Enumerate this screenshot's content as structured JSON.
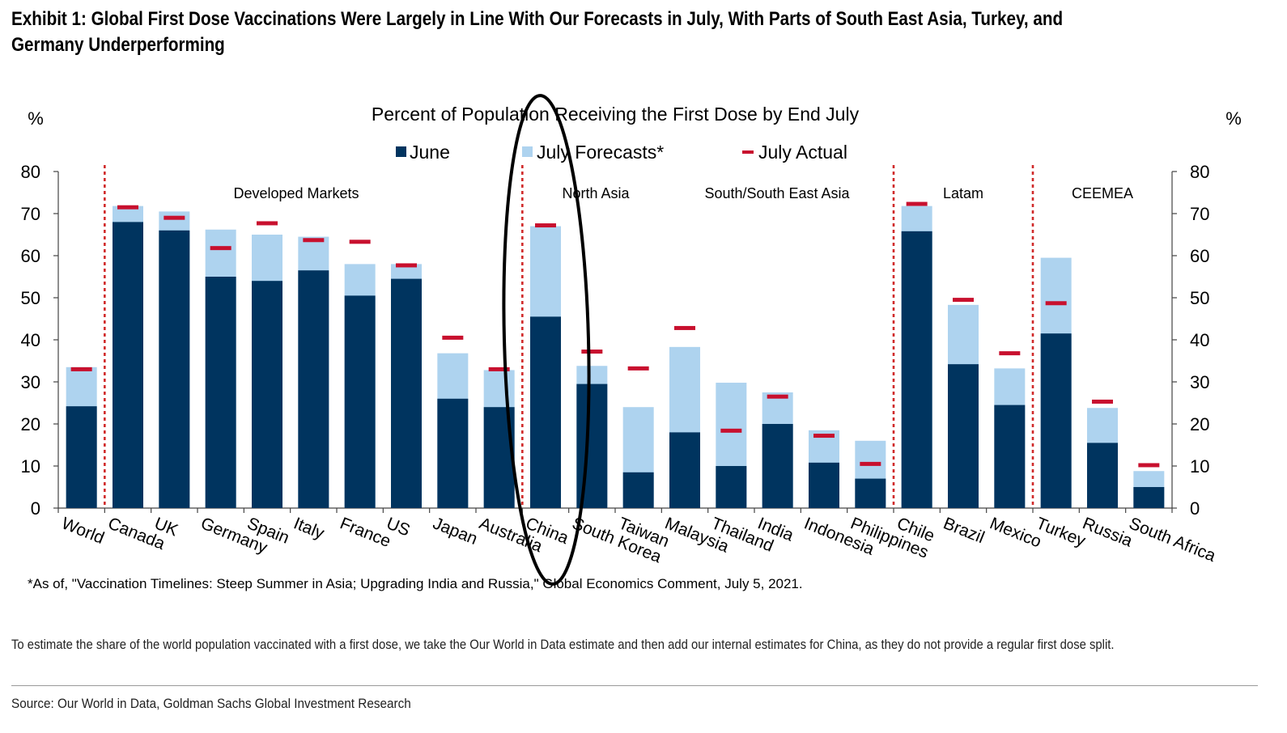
{
  "exhibit_title": "Exhibit 1: Global First Dose Vaccinations Were Largely in Line With Our Forecasts in July, With Parts of South East Asia, Turkey, and Germany Underperforming",
  "footnote": "*As of, \"Vaccination Timelines: Steep Summer in Asia; Upgrading India and Russia,\" Global Economics Comment, July 5, 2021.",
  "note": "To estimate the share of the world population vaccinated with a first dose, we take the Our World in Data estimate and then add our internal estimates for China, as they do not provide a regular first dose split.",
  "source": "Source: Our World in Data, Goldman Sachs Global Investment Research",
  "colors": {
    "june": "#00345f",
    "forecast": "#aed3ef",
    "actual": "#c8102e",
    "divider": "#d02a2a"
  },
  "chart_data": {
    "type": "bar",
    "title": "Percent of Population Receiving the First Dose by End July",
    "ylabel_left": "%",
    "ylabel_right": "%",
    "ylim": [
      0,
      80
    ],
    "yticks": [
      0,
      10,
      20,
      30,
      40,
      50,
      60,
      70,
      80
    ],
    "legend": {
      "placement": "top-center",
      "entries": [
        "June",
        "July Forecasts*",
        "July Actual"
      ]
    },
    "categories": [
      "World",
      "Canada",
      "UK",
      "Germany",
      "Spain",
      "Italy",
      "France",
      "US",
      "Japan",
      "Australia",
      "China",
      "South Korea",
      "Taiwan",
      "Malaysia",
      "Thailand",
      "India",
      "Indonesia",
      "Philippines",
      "Chile",
      "Brazil",
      "Mexico",
      "Turkey",
      "Russia",
      "South Africa"
    ],
    "series": [
      {
        "name": "June",
        "values": [
          24.2,
          68.0,
          66.0,
          55.0,
          54.0,
          56.5,
          50.5,
          54.5,
          26.0,
          24.0,
          45.5,
          29.5,
          8.5,
          18.0,
          10.0,
          20.0,
          10.8,
          7.0,
          65.8,
          34.2,
          24.5,
          41.5,
          15.5,
          5.0
        ]
      },
      {
        "name": "July Forecasts*",
        "values": [
          33.5,
          71.8,
          70.5,
          66.2,
          65.0,
          64.5,
          58.0,
          58.0,
          36.8,
          32.8,
          67.0,
          33.8,
          24.0,
          38.3,
          29.8,
          27.5,
          18.5,
          16.0,
          71.8,
          48.3,
          33.2,
          59.5,
          23.8,
          8.8
        ]
      },
      {
        "name": "July Actual",
        "values": [
          33.0,
          71.5,
          69.0,
          61.8,
          67.7,
          63.7,
          63.3,
          57.7,
          40.5,
          33.0,
          67.2,
          37.2,
          33.2,
          42.8,
          18.4,
          26.5,
          17.2,
          10.5,
          72.3,
          49.5,
          36.8,
          48.7,
          25.3,
          10.2
        ]
      }
    ],
    "groups": [
      {
        "label": "Developed Markets"
      },
      {
        "label": "North Asia"
      },
      {
        "label": "South/South East Asia"
      },
      {
        "label": "Latam"
      },
      {
        "label": "CEEMEA"
      }
    ]
  }
}
